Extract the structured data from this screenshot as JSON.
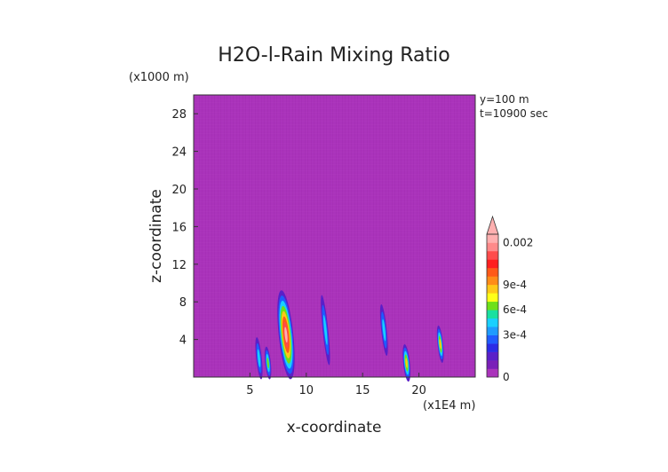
{
  "chart_data": {
    "type": "heatmap",
    "title": "H2O-l-Rain Mixing Ratio",
    "xlabel": "x-coordinate",
    "ylabel": "z-coordinate",
    "x_unit": "(x1E4 m)",
    "y_unit": "(x1000 m)",
    "xlim": [
      0,
      25
    ],
    "ylim": [
      0,
      30
    ],
    "x_ticks": [
      "5",
      "10",
      "15",
      "20"
    ],
    "y_ticks": [
      "4",
      "8",
      "12",
      "16",
      "20",
      "24",
      "28"
    ],
    "annotations": [
      "y=100 m",
      "t=10900 sec"
    ],
    "colorbar": {
      "tick_labels": [
        "0",
        "3e-4",
        "6e-4",
        "9e-4",
        "0.002"
      ],
      "levels": [
        {
          "color": "#aa33bb"
        },
        {
          "color": "#7a1fb8"
        },
        {
          "color": "#5a1fc8"
        },
        {
          "color": "#2b2be6"
        },
        {
          "color": "#1f5cff"
        },
        {
          "color": "#1e9bff"
        },
        {
          "color": "#19d0ff"
        },
        {
          "color": "#19e0a0"
        },
        {
          "color": "#6ee01a"
        },
        {
          "color": "#ffff19"
        },
        {
          "color": "#ffc819"
        },
        {
          "color": "#ff8c19"
        },
        {
          "color": "#ff5a19"
        },
        {
          "color": "#ff1f1f"
        },
        {
          "color": "#ff4b4b"
        },
        {
          "color": "#ff8a8a"
        },
        {
          "color": "#ffb0b0"
        }
      ]
    },
    "background_color": "#aa33bb",
    "features": [
      {
        "x": 5.8,
        "z": 2.0,
        "width": 0.5,
        "height": 4.5,
        "peak": "3e-4"
      },
      {
        "x": 6.6,
        "z": 1.5,
        "width": 0.5,
        "height": 3.5,
        "peak": "6e-4"
      },
      {
        "x": 8.2,
        "z": 4.5,
        "width": 1.3,
        "height": 9.5,
        "peak": "0.002"
      },
      {
        "x": 11.7,
        "z": 5.0,
        "width": 0.5,
        "height": 7.5,
        "peak": "3e-4"
      },
      {
        "x": 16.9,
        "z": 5.0,
        "width": 0.5,
        "height": 5.5,
        "peak": "3e-4"
      },
      {
        "x": 18.9,
        "z": 1.5,
        "width": 0.6,
        "height": 4.0,
        "peak": "9e-4"
      },
      {
        "x": 21.9,
        "z": 3.5,
        "width": 0.5,
        "height": 4.0,
        "peak": "9e-4"
      }
    ]
  }
}
